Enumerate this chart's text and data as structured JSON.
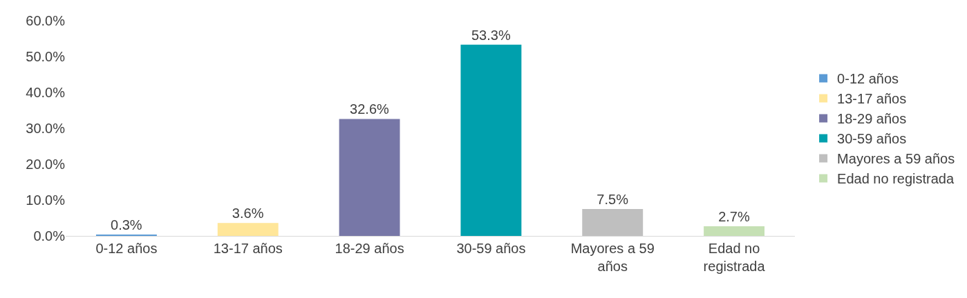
{
  "chart_data": {
    "type": "bar",
    "categories": [
      "0-12 años",
      "13-17 años",
      "18-29 años",
      "30-59 años",
      "Mayores a 59 años",
      "Edad no registrada"
    ],
    "series": [
      {
        "name": "0-12 años",
        "color": "#5b9bd5",
        "values": [
          0.3,
          null,
          null,
          null,
          null,
          null
        ]
      },
      {
        "name": "13-17 años",
        "color": "#ffe699",
        "values": [
          null,
          3.6,
          null,
          null,
          null,
          null
        ]
      },
      {
        "name": "18-29 años",
        "color": "#7777a7",
        "values": [
          null,
          null,
          32.6,
          null,
          null,
          null
        ]
      },
      {
        "name": "30-59 años",
        "color": "#00a0ad",
        "values": [
          null,
          null,
          null,
          53.3,
          null,
          null
        ]
      },
      {
        "name": "Mayores a 59 años",
        "color": "#bfbfbf",
        "values": [
          null,
          null,
          null,
          null,
          7.5,
          null
        ]
      },
      {
        "name": "Edad no registrada",
        "color": "#c5e0b4",
        "values": [
          null,
          null,
          null,
          null,
          null,
          2.7
        ]
      }
    ],
    "value_labels": [
      "0.3%",
      "3.6%",
      "32.6%",
      "53.3%",
      "7.5%",
      "2.7%"
    ],
    "ylim": [
      0,
      60
    ],
    "yticks": [
      {
        "value": 0,
        "label": "0.0%"
      },
      {
        "value": 10,
        "label": "10.0%"
      },
      {
        "value": 20,
        "label": "20.0%"
      },
      {
        "value": 30,
        "label": "30.0%"
      },
      {
        "value": 40,
        "label": "40.0%"
      },
      {
        "value": 50,
        "label": "50.0%"
      },
      {
        "value": 60,
        "label": "60.0%"
      }
    ],
    "legend": "right"
  }
}
